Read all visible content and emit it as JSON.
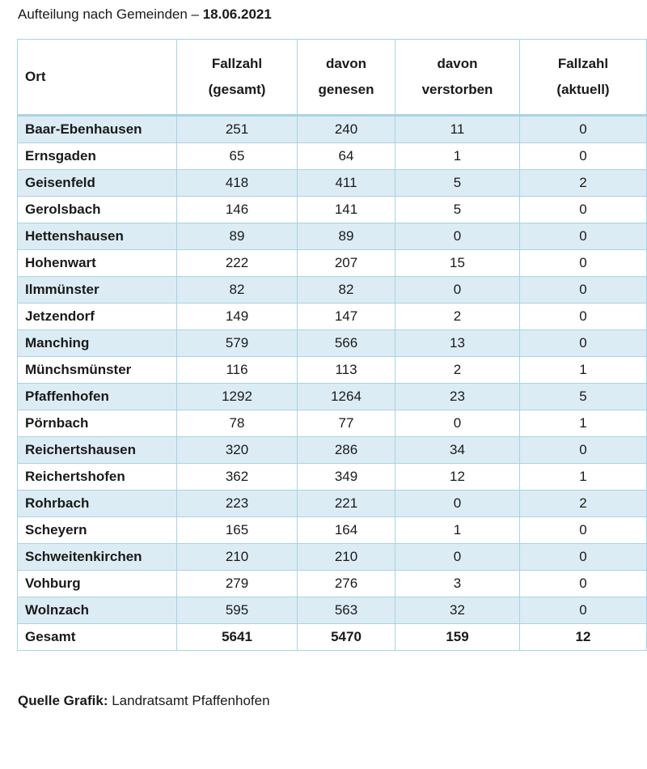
{
  "heading": {
    "prefix": "Aufteilung nach Gemeinden – ",
    "date": "18.06.2021"
  },
  "table": {
    "headers": {
      "ort": "Ort",
      "fallzahl_gesamt": [
        "Fallzahl",
        "(gesamt)"
      ],
      "genesen": [
        "davon",
        "genesen"
      ],
      "verstorben": [
        "davon",
        "verstorben"
      ],
      "fallzahl_aktuell": [
        "Fallzahl",
        "(aktuell)"
      ]
    },
    "rows": [
      [
        "Baar-Ebenhausen",
        "251",
        "240",
        "11",
        "0"
      ],
      [
        "Ernsgaden",
        "65",
        "64",
        "1",
        "0"
      ],
      [
        "Geisenfeld",
        "418",
        "411",
        "5",
        "2"
      ],
      [
        "Gerolsbach",
        "146",
        "141",
        "5",
        "0"
      ],
      [
        "Hettenshausen",
        "89",
        "89",
        "0",
        "0"
      ],
      [
        "Hohenwart",
        "222",
        "207",
        "15",
        "0"
      ],
      [
        "Ilmmünster",
        "82",
        "82",
        "0",
        "0"
      ],
      [
        "Jetzendorf",
        "149",
        "147",
        "2",
        "0"
      ],
      [
        "Manching",
        "579",
        "566",
        "13",
        "0"
      ],
      [
        "Münchsmünster",
        "116",
        "113",
        "2",
        "1"
      ],
      [
        "Pfaffenhofen",
        "1292",
        "1264",
        "23",
        "5"
      ],
      [
        "Pörnbach",
        "78",
        "77",
        "0",
        "1"
      ],
      [
        "Reichertshausen",
        "320",
        "286",
        "34",
        "0"
      ],
      [
        "Reichertshofen",
        "362",
        "349",
        "12",
        "1"
      ],
      [
        "Rohrbach",
        "223",
        "221",
        "0",
        "2"
      ],
      [
        "Scheyern",
        "165",
        "164",
        "1",
        "0"
      ],
      [
        "Schweitenkirchen",
        "210",
        "210",
        "0",
        "0"
      ],
      [
        "Vohburg",
        "279",
        "276",
        "3",
        "0"
      ],
      [
        "Wolnzach",
        "595",
        "563",
        "32",
        "0"
      ]
    ],
    "total": [
      "Gesamt",
      "5641",
      "5470",
      "159",
      "12"
    ]
  },
  "source": {
    "label": "Quelle Grafik:",
    "text": " Landratsamt Pfaffenhofen"
  }
}
